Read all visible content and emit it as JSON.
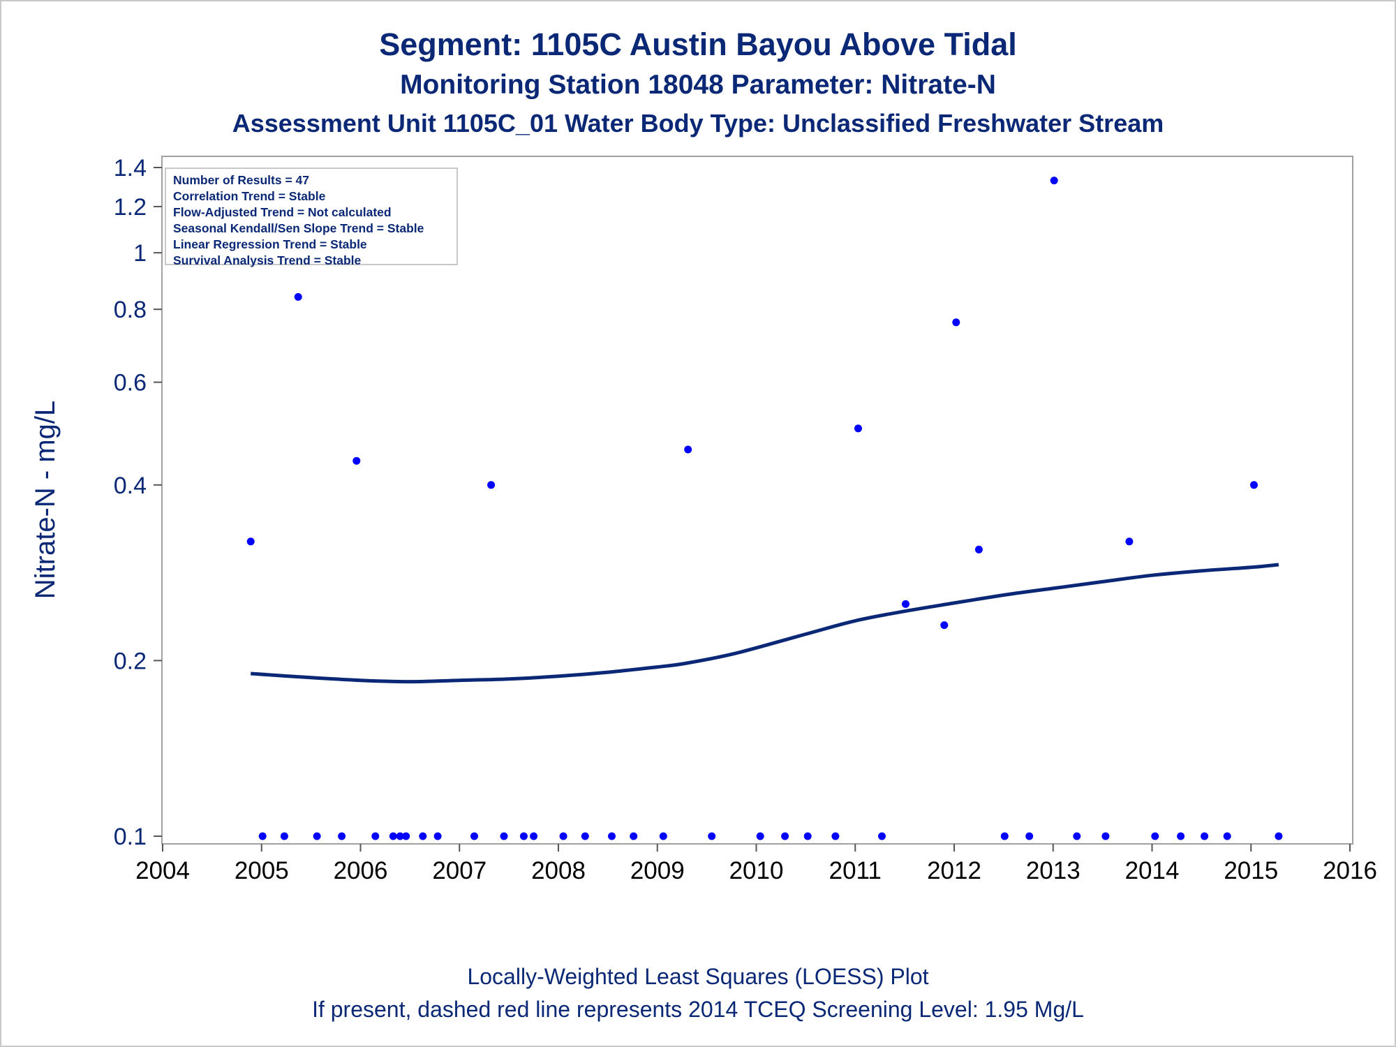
{
  "titles": {
    "line1": "Segment: 1105C  Austin Bayou Above Tidal",
    "line2": "Monitoring Station 18048 Parameter: Nitrate-N",
    "line3": "Assessment Unit 1105C_01   Water Body Type: Unclassified Freshwater Stream"
  },
  "footnotes": {
    "line1": "Locally-Weighted Least Squares (LOESS) Plot",
    "line2": "If present, dashed red line represents 2014 TCEQ Screening Level: 1.95 Mg/L"
  },
  "stats": [
    "Number of Results = 47",
    "Correlation Trend = Stable",
    "Flow-Adjusted Trend = Not calculated",
    "Seasonal Kendall/Sen Slope Trend = Stable",
    "Linear Regression Trend = Stable",
    "Survival Analysis Trend = Stable"
  ],
  "colors": {
    "text": "#0a2875",
    "points": "#0000ff",
    "loess_line": "#0a2875",
    "frame": "#a0a0a0"
  },
  "chart_data": {
    "type": "scatter",
    "ylabel": "Nitrate-N - mg/L",
    "xlabel": "",
    "x_scale": "date (years)",
    "y_scale": "log",
    "xlim": [
      2004,
      2016
    ],
    "ylim": [
      0.095,
      1.45
    ],
    "x_ticks": [
      "2004",
      "2005",
      "2006",
      "2007",
      "2008",
      "2009",
      "2010",
      "2011",
      "2012",
      "2013",
      "2014",
      "2015",
      "2016"
    ],
    "y_ticks": [
      {
        "value": 0.1,
        "label": "0.1"
      },
      {
        "value": 0.2,
        "label": "0.2"
      },
      {
        "value": 0.4,
        "label": "0.4"
      },
      {
        "value": 0.6,
        "label": "0.6"
      },
      {
        "value": 0.8,
        "label": "0.8"
      },
      {
        "value": 1.0,
        "label": "1"
      },
      {
        "value": 1.2,
        "label": "1.2"
      },
      {
        "value": 1.4,
        "label": "1.4"
      }
    ],
    "points": [
      {
        "x": 2004.89,
        "y": 0.32
      },
      {
        "x": 2005.01,
        "y": 0.1
      },
      {
        "x": 2005.23,
        "y": 0.1
      },
      {
        "x": 2005.37,
        "y": 0.84
      },
      {
        "x": 2005.56,
        "y": 0.1
      },
      {
        "x": 2005.81,
        "y": 0.1
      },
      {
        "x": 2005.96,
        "y": 0.44
      },
      {
        "x": 2006.15,
        "y": 0.1
      },
      {
        "x": 2006.33,
        "y": 0.1
      },
      {
        "x": 2006.4,
        "y": 0.1
      },
      {
        "x": 2006.46,
        "y": 0.1
      },
      {
        "x": 2006.63,
        "y": 0.1
      },
      {
        "x": 2006.78,
        "y": 0.1
      },
      {
        "x": 2007.15,
        "y": 0.1
      },
      {
        "x": 2007.32,
        "y": 0.4
      },
      {
        "x": 2007.45,
        "y": 0.1
      },
      {
        "x": 2007.65,
        "y": 0.1
      },
      {
        "x": 2007.75,
        "y": 0.1
      },
      {
        "x": 2008.05,
        "y": 0.1
      },
      {
        "x": 2008.27,
        "y": 0.1
      },
      {
        "x": 2008.54,
        "y": 0.1
      },
      {
        "x": 2008.76,
        "y": 0.1
      },
      {
        "x": 2009.06,
        "y": 0.1
      },
      {
        "x": 2009.31,
        "y": 0.46
      },
      {
        "x": 2009.55,
        "y": 0.1
      },
      {
        "x": 2010.04,
        "y": 0.1
      },
      {
        "x": 2010.29,
        "y": 0.1
      },
      {
        "x": 2010.52,
        "y": 0.1
      },
      {
        "x": 2010.8,
        "y": 0.1
      },
      {
        "x": 2011.03,
        "y": 0.5
      },
      {
        "x": 2011.27,
        "y": 0.1
      },
      {
        "x": 2011.51,
        "y": 0.25
      },
      {
        "x": 2011.9,
        "y": 0.23
      },
      {
        "x": 2012.02,
        "y": 0.76
      },
      {
        "x": 2012.25,
        "y": 0.31
      },
      {
        "x": 2012.51,
        "y": 0.1
      },
      {
        "x": 2012.76,
        "y": 0.1
      },
      {
        "x": 2013.01,
        "y": 1.33
      },
      {
        "x": 2013.24,
        "y": 0.1
      },
      {
        "x": 2013.53,
        "y": 0.1
      },
      {
        "x": 2013.77,
        "y": 0.32
      },
      {
        "x": 2014.03,
        "y": 0.1
      },
      {
        "x": 2014.29,
        "y": 0.1
      },
      {
        "x": 2014.53,
        "y": 0.1
      },
      {
        "x": 2014.76,
        "y": 0.1
      },
      {
        "x": 2015.03,
        "y": 0.4
      },
      {
        "x": 2015.28,
        "y": 0.1
      }
    ],
    "loess": [
      {
        "x": 2004.89,
        "y": 0.19
      },
      {
        "x": 2005.5,
        "y": 0.187
      },
      {
        "x": 2006.0,
        "y": 0.185
      },
      {
        "x": 2006.5,
        "y": 0.184
      },
      {
        "x": 2007.0,
        "y": 0.185
      },
      {
        "x": 2007.5,
        "y": 0.186
      },
      {
        "x": 2008.0,
        "y": 0.188
      },
      {
        "x": 2008.5,
        "y": 0.191
      },
      {
        "x": 2009.0,
        "y": 0.195
      },
      {
        "x": 2009.3,
        "y": 0.198
      },
      {
        "x": 2009.8,
        "y": 0.206
      },
      {
        "x": 2010.5,
        "y": 0.222
      },
      {
        "x": 2011.0,
        "y": 0.234
      },
      {
        "x": 2011.5,
        "y": 0.243
      },
      {
        "x": 2012.0,
        "y": 0.251
      },
      {
        "x": 2012.5,
        "y": 0.259
      },
      {
        "x": 2013.0,
        "y": 0.266
      },
      {
        "x": 2013.5,
        "y": 0.273
      },
      {
        "x": 2014.0,
        "y": 0.28
      },
      {
        "x": 2014.5,
        "y": 0.285
      },
      {
        "x": 2015.0,
        "y": 0.289
      },
      {
        "x": 2015.28,
        "y": 0.292
      }
    ]
  }
}
